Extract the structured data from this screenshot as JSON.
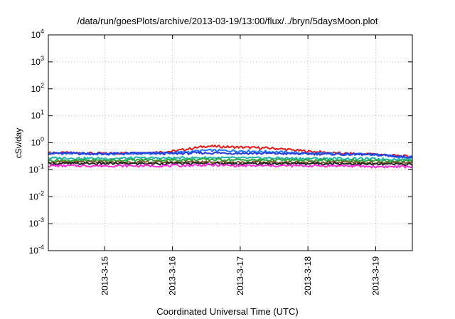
{
  "chart_data": {
    "type": "line",
    "title": "/data/run/goesPlots/archive/2013-03-19/13:00/flux/../bryn/5daysMoon.plot",
    "xlabel": "Coordinated Universal Time (UTC)",
    "ylabel": "cSv/day",
    "x_range": [
      "2013-03-14T04:00",
      "2013-03-19T13:00"
    ],
    "xticks": [
      {
        "label": "2013-3-15",
        "at": "2013-03-15T00:00"
      },
      {
        "label": "2013-3-16",
        "at": "2013-03-16T00:00"
      },
      {
        "label": "2013-3-17",
        "at": "2013-03-17T00:00"
      },
      {
        "label": "2013-3-18",
        "at": "2013-03-18T00:00"
      },
      {
        "label": "2013-3-19",
        "at": "2013-03-19T00:00"
      }
    ],
    "y_scale": "log",
    "ylim": [
      0.0001,
      10000
    ],
    "yticks": [
      {
        "base": "10",
        "exp": "4",
        "value": 10000
      },
      {
        "base": "10",
        "exp": "3",
        "value": 1000
      },
      {
        "base": "10",
        "exp": "2",
        "value": 100
      },
      {
        "base": "10",
        "exp": "1",
        "value": 10
      },
      {
        "base": "10",
        "exp": "0",
        "value": 1
      },
      {
        "base": "10",
        "exp": "-1",
        "value": 0.1
      },
      {
        "base": "10",
        "exp": "-2",
        "value": 0.01
      },
      {
        "base": "10",
        "exp": "-3",
        "value": 0.001
      },
      {
        "base": "10",
        "exp": "-4",
        "value": 0.0001
      }
    ],
    "grid": true,
    "legend": "none",
    "x": [
      "2013-03-14T04:00",
      "2013-03-14T12:00",
      "2013-03-15T00:00",
      "2013-03-15T12:00",
      "2013-03-16T00:00",
      "2013-03-16T12:00",
      "2013-03-17T00:00",
      "2013-03-17T12:00",
      "2013-03-18T00:00",
      "2013-03-18T12:00",
      "2013-03-19T00:00",
      "2013-03-19T13:00"
    ],
    "series": [
      {
        "color": "#e41a1c",
        "values": [
          0.42,
          0.42,
          0.4,
          0.42,
          0.48,
          0.75,
          0.68,
          0.62,
          0.48,
          0.4,
          0.38,
          0.3
        ]
      },
      {
        "color": "#1f77ff",
        "values": [
          0.4,
          0.4,
          0.38,
          0.4,
          0.42,
          0.52,
          0.5,
          0.46,
          0.4,
          0.38,
          0.36,
          0.28
        ]
      },
      {
        "color": "#2a3bd8",
        "values": [
          0.41,
          0.41,
          0.39,
          0.41,
          0.4,
          0.42,
          0.41,
          0.4,
          0.39,
          0.38,
          0.36,
          0.29
        ]
      },
      {
        "color": "#21b5a8",
        "values": [
          0.27,
          0.27,
          0.26,
          0.27,
          0.27,
          0.28,
          0.27,
          0.27,
          0.26,
          0.26,
          0.25,
          0.24
        ]
      },
      {
        "color": "#2aa83a",
        "values": [
          0.22,
          0.22,
          0.22,
          0.23,
          0.23,
          0.24,
          0.23,
          0.23,
          0.22,
          0.22,
          0.21,
          0.21
        ]
      },
      {
        "color": "#7a5a2a",
        "values": [
          0.19,
          0.19,
          0.19,
          0.19,
          0.19,
          0.2,
          0.19,
          0.19,
          0.19,
          0.19,
          0.18,
          0.18
        ]
      },
      {
        "color": "#222222",
        "values": [
          0.17,
          0.17,
          0.17,
          0.17,
          0.17,
          0.17,
          0.17,
          0.17,
          0.17,
          0.17,
          0.16,
          0.16
        ]
      },
      {
        "color": "#ff2bd6",
        "values": [
          0.14,
          0.14,
          0.14,
          0.14,
          0.14,
          0.15,
          0.14,
          0.14,
          0.14,
          0.14,
          0.13,
          0.13
        ]
      }
    ]
  }
}
